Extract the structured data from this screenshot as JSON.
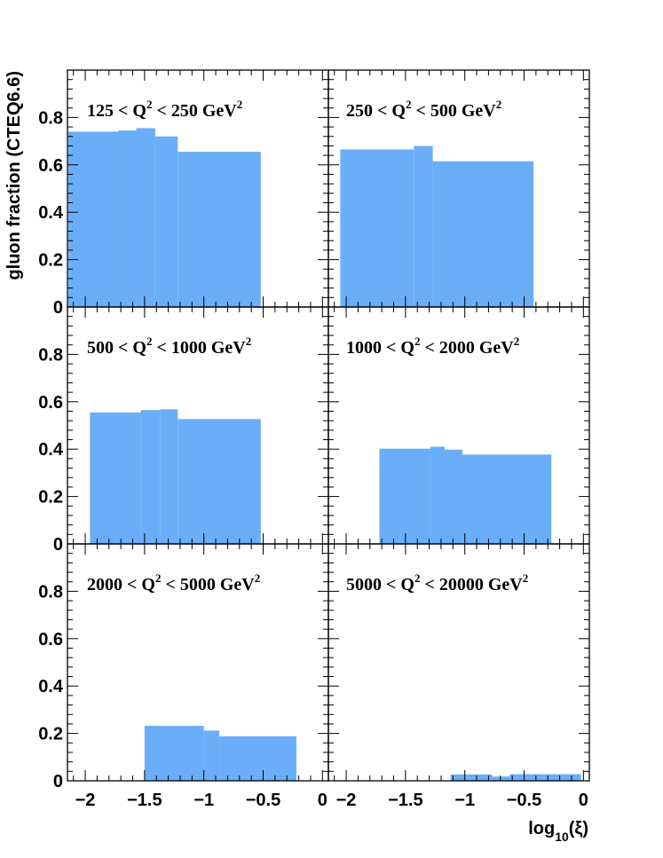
{
  "chart_data": {
    "type": "bar",
    "figure": {
      "ylabel": "gluon fraction (CTEQ6.6)",
      "xlabel_main": "log",
      "xlabel_sub": "10",
      "xlabel_tail": "(ξ)",
      "xlim": [
        -2.15,
        0.05
      ],
      "ylim": [
        0,
        1.0
      ],
      "x_tick_labels": [
        "−2",
        "−1.5",
        "−1",
        "−0.5",
        "0"
      ],
      "x_ticks": [
        -2,
        -1.5,
        -1,
        -0.5,
        0
      ],
      "y_tick_labels": [
        "0",
        "0.2",
        "0.4",
        "0.6",
        "0.8"
      ],
      "y_ticks": [
        0,
        0.2,
        0.4,
        0.6,
        0.8
      ],
      "bar_color": "#6aaefa",
      "grid": false
    },
    "panels": [
      {
        "label_pre": "125 < Q",
        "label_sup": "2",
        "label_mid": " < 250 GeV",
        "label_sup2": "2",
        "bins": [
          {
            "x0": -2.15,
            "x1": -1.72,
            "value": 0.74
          },
          {
            "x0": -1.72,
            "x1": -1.57,
            "value": 0.745
          },
          {
            "x0": -1.57,
            "x1": -1.41,
            "value": 0.755
          },
          {
            "x0": -1.41,
            "x1": -1.22,
            "value": 0.72
          },
          {
            "x0": -1.22,
            "x1": -0.52,
            "value": 0.655
          }
        ]
      },
      {
        "label_pre": "250 < Q",
        "label_sup": "2",
        "label_mid": " < 500 GeV",
        "label_sup2": "2",
        "bins": [
          {
            "x0": -2.05,
            "x1": -1.43,
            "value": 0.665
          },
          {
            "x0": -1.43,
            "x1": -1.27,
            "value": 0.68
          },
          {
            "x0": -1.27,
            "x1": -0.42,
            "value": 0.615
          }
        ]
      },
      {
        "label_pre": "500 < Q",
        "label_sup": "2",
        "label_mid": " < 1000 GeV",
        "label_sup2": "2",
        "bins": [
          {
            "x0": -1.96,
            "x1": -1.53,
            "value": 0.555
          },
          {
            "x0": -1.53,
            "x1": -1.37,
            "value": 0.565
          },
          {
            "x0": -1.37,
            "x1": -1.22,
            "value": 0.568
          },
          {
            "x0": -1.22,
            "x1": -0.52,
            "value": 0.527
          }
        ]
      },
      {
        "label_pre": "1000 < Q",
        "label_sup": "2",
        "label_mid": " < 2000 GeV",
        "label_sup2": "2",
        "bins": [
          {
            "x0": -1.72,
            "x1": -1.29,
            "value": 0.402
          },
          {
            "x0": -1.29,
            "x1": -1.17,
            "value": 0.41
          },
          {
            "x0": -1.17,
            "x1": -1.02,
            "value": 0.398
          },
          {
            "x0": -1.02,
            "x1": -0.27,
            "value": 0.377
          }
        ]
      },
      {
        "label_pre": "2000 < Q",
        "label_sup": "2",
        "label_mid": " < 5000 GeV",
        "label_sup2": "2",
        "bins": [
          {
            "x0": -1.5,
            "x1": -1.0,
            "value": 0.232
          },
          {
            "x0": -1.0,
            "x1": -0.87,
            "value": 0.212
          },
          {
            "x0": -0.87,
            "x1": -0.22,
            "value": 0.188
          }
        ]
      },
      {
        "label_pre": "5000 < Q",
        "label_sup": "2",
        "label_mid": " < 20000 GeV",
        "label_sup2": "2",
        "bins": [
          {
            "x0": -1.12,
            "x1": -0.77,
            "value": 0.027
          },
          {
            "x0": -0.77,
            "x1": -0.62,
            "value": 0.018
          },
          {
            "x0": -0.62,
            "x1": -0.02,
            "value": 0.028
          }
        ]
      }
    ]
  }
}
